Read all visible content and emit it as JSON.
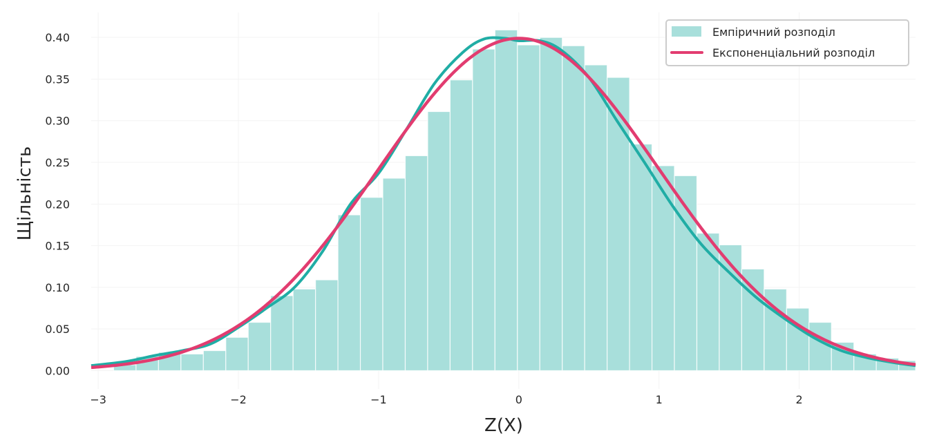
{
  "chart_data": {
    "type": "bar",
    "xlabel": "Z(X)",
    "ylabel": "Щільність",
    "xlim": [
      -3.05,
      2.83
    ],
    "ylim": [
      -0.022,
      0.43
    ],
    "x_ticks": [
      {
        "value": -3,
        "label": "−3"
      },
      {
        "value": -2,
        "label": "−2"
      },
      {
        "value": -1,
        "label": "−1"
      },
      {
        "value": 0,
        "label": "0"
      },
      {
        "value": 1,
        "label": "1"
      },
      {
        "value": 2,
        "label": "2"
      }
    ],
    "y_ticks": [
      {
        "value": 0.0,
        "label": "0.00"
      },
      {
        "value": 0.05,
        "label": "0.05"
      },
      {
        "value": 0.1,
        "label": "0.10"
      },
      {
        "value": 0.15,
        "label": "0.15"
      },
      {
        "value": 0.2,
        "label": "0.20"
      },
      {
        "value": 0.25,
        "label": "0.25"
      },
      {
        "value": 0.3,
        "label": "0.30"
      },
      {
        "value": 0.35,
        "label": "0.35"
      },
      {
        "value": 0.4,
        "label": "0.40"
      }
    ],
    "grid": true,
    "legend_position": "top-right",
    "histogram": {
      "name": "Емпіричний розподіл",
      "color": "#a8dfdb",
      "bin_start": -2.89,
      "bin_width": 0.16,
      "values": [
        0.007,
        0.017,
        0.022,
        0.02,
        0.024,
        0.04,
        0.058,
        0.09,
        0.098,
        0.109,
        0.187,
        0.208,
        0.231,
        0.258,
        0.311,
        0.349,
        0.386,
        0.409,
        0.391,
        0.4,
        0.39,
        0.367,
        0.352,
        0.272,
        0.246,
        0.234,
        0.165,
        0.151,
        0.122,
        0.098,
        0.075,
        0.058,
        0.034,
        0.02,
        0.015,
        0.012,
        0.008
      ]
    },
    "series": [
      {
        "color": "#20ada5",
        "x": [
          -3.05,
          -2.8,
          -2.6,
          -2.4,
          -2.2,
          -2.0,
          -1.8,
          -1.6,
          -1.4,
          -1.2,
          -1.0,
          -0.8,
          -0.6,
          -0.4,
          -0.25,
          -0.1,
          0.0,
          0.15,
          0.3,
          0.5,
          0.7,
          0.9,
          1.1,
          1.3,
          1.5,
          1.7,
          1.9,
          2.1,
          2.3,
          2.5,
          2.7,
          2.83
        ],
        "y": [
          0.006,
          0.011,
          0.018,
          0.024,
          0.032,
          0.052,
          0.075,
          0.1,
          0.143,
          0.2,
          0.237,
          0.29,
          0.345,
          0.382,
          0.398,
          0.399,
          0.396,
          0.396,
          0.385,
          0.352,
          0.3,
          0.249,
          0.197,
          0.152,
          0.118,
          0.087,
          0.062,
          0.04,
          0.024,
          0.015,
          0.009,
          0.006
        ]
      },
      {
        "name": "Експоненціальний розподіл",
        "color": "#e23c70",
        "function": "normal_pdf",
        "mean": 0,
        "std": 1
      }
    ]
  }
}
